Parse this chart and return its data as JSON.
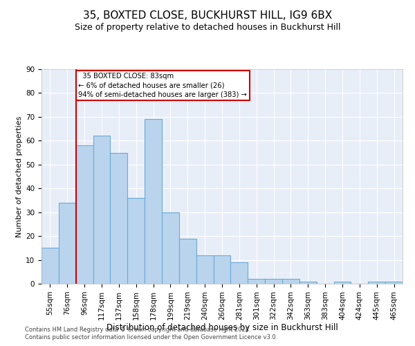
{
  "title": "35, BOXTED CLOSE, BUCKHURST HILL, IG9 6BX",
  "subtitle": "Size of property relative to detached houses in Buckhurst Hill",
  "xlabel": "Distribution of detached houses by size in Buckhurst Hill",
  "ylabel": "Number of detached properties",
  "footnote1": "Contains HM Land Registry data © Crown copyright and database right 2024.",
  "footnote2": "Contains public sector information licensed under the Open Government Licence v3.0.",
  "categories": [
    "55sqm",
    "76sqm",
    "96sqm",
    "117sqm",
    "137sqm",
    "158sqm",
    "178sqm",
    "199sqm",
    "219sqm",
    "240sqm",
    "260sqm",
    "281sqm",
    "301sqm",
    "322sqm",
    "342sqm",
    "363sqm",
    "383sqm",
    "404sqm",
    "424sqm",
    "445sqm",
    "465sqm"
  ],
  "values": [
    15,
    34,
    58,
    62,
    55,
    36,
    69,
    30,
    19,
    12,
    12,
    9,
    2,
    2,
    2,
    1,
    0,
    1,
    0,
    1,
    1
  ],
  "bar_color": "#bad4ee",
  "bar_edge_color": "#6aaad4",
  "vline_color": "#cc0000",
  "background_color": "#e8eef8",
  "annotation_text_line1": "35 BOXTED CLOSE: 83sqm",
  "annotation_text_line2": "← 6% of detached houses are smaller (26)",
  "annotation_text_line3": "94% of semi-detached houses are larger (383) →",
  "ylim": [
    0,
    90
  ],
  "title_fontsize": 11,
  "subtitle_fontsize": 9,
  "xlabel_fontsize": 8.5,
  "ylabel_fontsize": 8,
  "tick_fontsize": 7.5,
  "footnote_fontsize": 6
}
